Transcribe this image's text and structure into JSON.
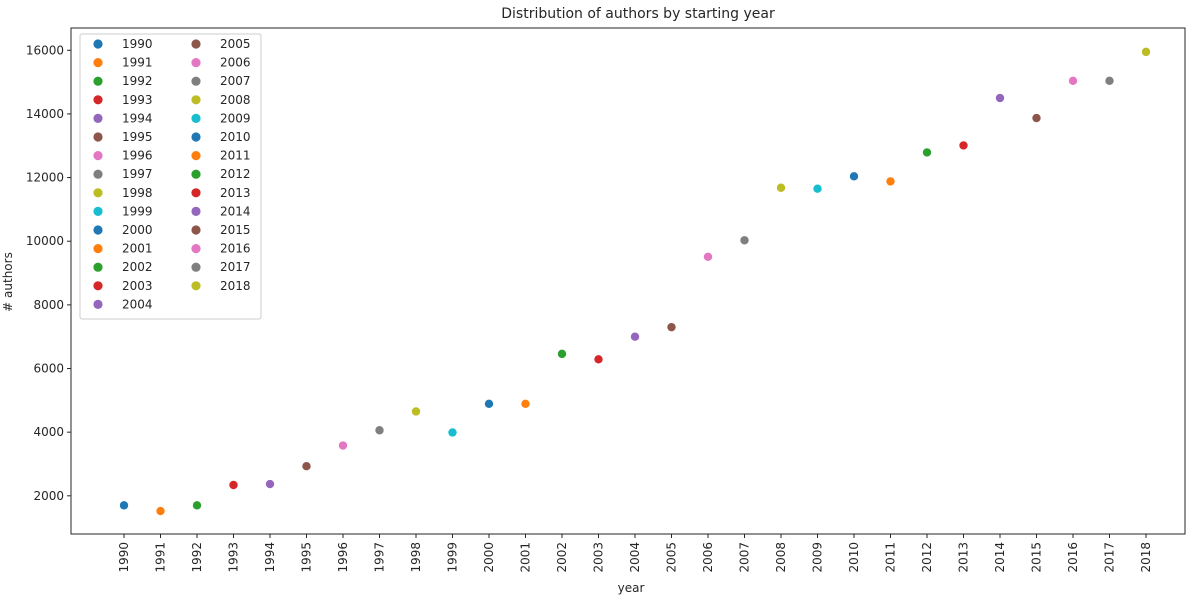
{
  "chart_data": {
    "type": "scatter",
    "title": "Distribution of authors by starting year",
    "xlabel": "year",
    "ylabel": "# authors",
    "ylim": [
      800,
      16700
    ],
    "yticks": [
      2000,
      4000,
      6000,
      8000,
      10000,
      12000,
      14000,
      16000
    ],
    "grid": false,
    "legend_position": "top-left",
    "legend_columns": 2,
    "palette": [
      "#1f77b4",
      "#ff7f0e",
      "#2ca02c",
      "#d62728",
      "#9467bd",
      "#8c564b",
      "#e377c2",
      "#7f7f7f",
      "#bcbd22",
      "#17becf"
    ],
    "categories": [
      "1990",
      "1991",
      "1992",
      "1993",
      "1994",
      "1995",
      "1996",
      "1997",
      "1998",
      "1999",
      "2000",
      "2001",
      "2002",
      "2003",
      "2004",
      "2005",
      "2006",
      "2007",
      "2008",
      "2009",
      "2010",
      "2011",
      "2012",
      "2013",
      "2014",
      "2015",
      "2016",
      "2017",
      "2018"
    ],
    "values": [
      1700,
      1520,
      1700,
      2340,
      2370,
      2930,
      3580,
      4060,
      4650,
      3990,
      4890,
      4890,
      6460,
      6290,
      7000,
      7300,
      9510,
      10030,
      11680,
      11650,
      12040,
      11880,
      12790,
      13010,
      14500,
      13870,
      15040,
      15040,
      15950
    ]
  }
}
